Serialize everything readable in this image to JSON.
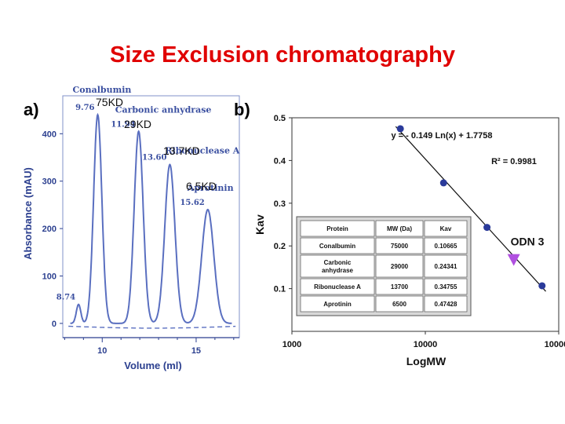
{
  "title": "Size Exclusion chromatography",
  "mw_labels": [
    "75KD",
    "29KD",
    "13.7KD",
    "6.5KD"
  ],
  "colors": {
    "title": "#e00000",
    "trace": "#5a6fc0",
    "axis_a": "#2b3f8f",
    "points": "#2a3a9a",
    "odn": "#b050e0"
  },
  "chart_data": [
    {
      "type": "line",
      "panel_label": "a)",
      "xlabel": "Volume (ml)",
      "ylabel": "Absorbance (mAU)",
      "xlim": [
        7.9,
        17.3
      ],
      "ylim": [
        -30,
        480
      ],
      "x_ticks": [
        10,
        15
      ],
      "y_ticks": [
        0,
        100,
        200,
        300,
        400
      ],
      "baseline": 0,
      "peaks": [
        {
          "x": 8.74,
          "height": 40,
          "width": 0.12,
          "label": "8.74",
          "name": ""
        },
        {
          "x": 9.76,
          "height": 440,
          "width": 0.22,
          "label": "9.76",
          "name": "Conalbumin"
        },
        {
          "x": 11.94,
          "height": 405,
          "width": 0.24,
          "label": "11.94",
          "name": "Carbonic anhydrase"
        },
        {
          "x": 13.6,
          "height": 335,
          "width": 0.27,
          "label": "13.60",
          "name": "Ribonuclease A"
        },
        {
          "x": 15.62,
          "height": 240,
          "width": 0.32,
          "label": "15.62",
          "name": "Aprotinin"
        }
      ],
      "name_positions": {
        "Conalbumin": "top-left",
        "Carbonic anhydrase": "top",
        "Ribonuclease A": "top-right",
        "Aprotinin": "right"
      }
    },
    {
      "type": "scatter",
      "panel_label": "b)",
      "xlabel": "LogMW",
      "ylabel": "Kav",
      "xscale": "log",
      "xlim": [
        1000,
        100000
      ],
      "ylim": [
        0,
        0.5
      ],
      "x_ticks": [
        1000,
        10000,
        100000
      ],
      "x_tick_labels": [
        "1000",
        "10000",
        "100000"
      ],
      "y_ticks": [
        0.1,
        0.2,
        0.3,
        0.4,
        0.5
      ],
      "y_tick_labels": [
        "0.1",
        "0.2",
        "0.3",
        "0.4",
        "0.5"
      ],
      "points": [
        {
          "x": 75000,
          "y": 0.10665
        },
        {
          "x": 29000,
          "y": 0.24341
        },
        {
          "x": 13700,
          "y": 0.34755
        },
        {
          "x": 6500,
          "y": 0.47428
        }
      ],
      "fit": {
        "equation": "y = - 0.149 Ln(x) + 1.7758",
        "r2": "R² = 0.9981",
        "a": -0.149,
        "b": 1.7758
      },
      "odn": {
        "label": "ODN 3",
        "x": 46000,
        "y": 0.168
      },
      "table": {
        "headers": [
          "Protein",
          "MW (Da)",
          "Kav"
        ],
        "rows": [
          [
            "Conalbumin",
            "75000",
            "0.10665"
          ],
          [
            "Carbonic anhydrase",
            "29000",
            "0.24341"
          ],
          [
            "Ribonuclease A",
            "13700",
            "0.34755"
          ],
          [
            "Aprotinin",
            "6500",
            "0.47428"
          ]
        ]
      }
    }
  ]
}
